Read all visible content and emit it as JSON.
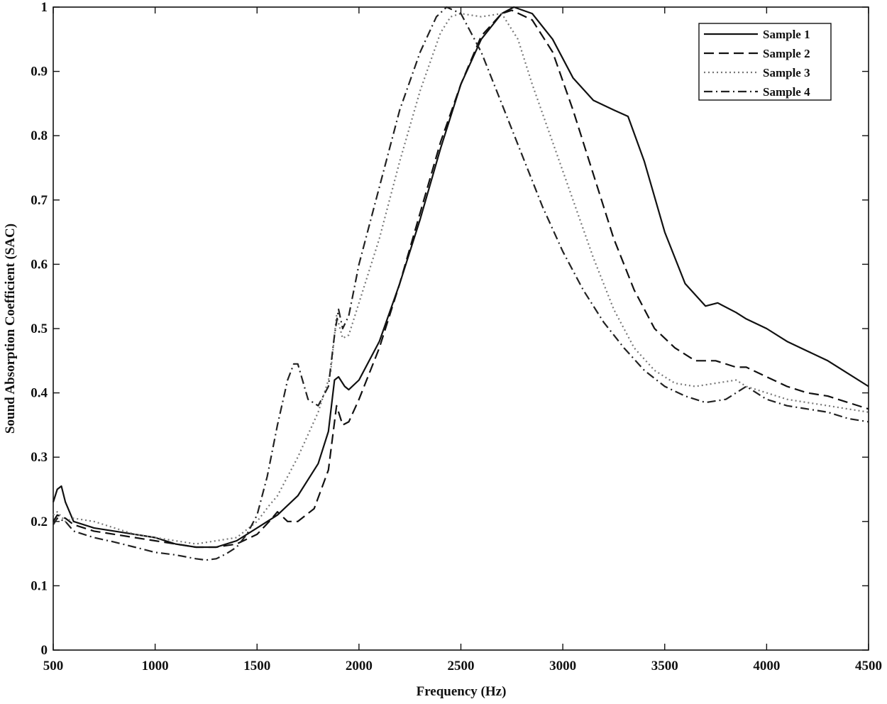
{
  "chart_data": {
    "type": "line",
    "title": "",
    "xlabel": "Frequency (Hz)",
    "ylabel": "Sound Absorption Coefficient (SAC)",
    "xlim": [
      500,
      4500
    ],
    "ylim": [
      0,
      1
    ],
    "grid": false,
    "legend_position": "top-right",
    "x_ticks": [
      500,
      1000,
      1500,
      2000,
      2500,
      3000,
      3500,
      4000,
      4500
    ],
    "y_ticks": [
      0,
      0.1,
      0.2,
      0.3,
      0.4,
      0.5,
      0.6,
      0.7,
      0.8,
      0.9,
      1
    ],
    "y_tick_labels": [
      "0",
      "0.1",
      "0.2",
      "0.3",
      "0.4",
      "0.5",
      "0.6",
      "0.7",
      "0.8",
      "0.9",
      "1"
    ],
    "series": [
      {
        "name": "Sample 1",
        "style": "solid",
        "color": "#111111",
        "points": [
          [
            500,
            0.23
          ],
          [
            520,
            0.25
          ],
          [
            540,
            0.255
          ],
          [
            560,
            0.23
          ],
          [
            600,
            0.2
          ],
          [
            700,
            0.19
          ],
          [
            800,
            0.185
          ],
          [
            900,
            0.18
          ],
          [
            1000,
            0.175
          ],
          [
            1100,
            0.165
          ],
          [
            1200,
            0.16
          ],
          [
            1300,
            0.16
          ],
          [
            1400,
            0.17
          ],
          [
            1500,
            0.19
          ],
          [
            1600,
            0.21
          ],
          [
            1700,
            0.24
          ],
          [
            1800,
            0.29
          ],
          [
            1850,
            0.34
          ],
          [
            1880,
            0.42
          ],
          [
            1900,
            0.425
          ],
          [
            1930,
            0.41
          ],
          [
            1950,
            0.405
          ],
          [
            2000,
            0.42
          ],
          [
            2100,
            0.48
          ],
          [
            2200,
            0.57
          ],
          [
            2300,
            0.67
          ],
          [
            2400,
            0.78
          ],
          [
            2500,
            0.88
          ],
          [
            2600,
            0.95
          ],
          [
            2700,
            0.99
          ],
          [
            2760,
            1.0
          ],
          [
            2850,
            0.99
          ],
          [
            2950,
            0.95
          ],
          [
            3050,
            0.89
          ],
          [
            3150,
            0.855
          ],
          [
            3250,
            0.84
          ],
          [
            3320,
            0.83
          ],
          [
            3400,
            0.76
          ],
          [
            3500,
            0.65
          ],
          [
            3600,
            0.57
          ],
          [
            3700,
            0.535
          ],
          [
            3760,
            0.54
          ],
          [
            3850,
            0.525
          ],
          [
            3900,
            0.515
          ],
          [
            4000,
            0.5
          ],
          [
            4100,
            0.48
          ],
          [
            4200,
            0.465
          ],
          [
            4300,
            0.45
          ],
          [
            4400,
            0.43
          ],
          [
            4500,
            0.41
          ]
        ]
      },
      {
        "name": "Sample 2",
        "style": "dashed",
        "color": "#111111",
        "points": [
          [
            500,
            0.2
          ],
          [
            520,
            0.21
          ],
          [
            560,
            0.205
          ],
          [
            600,
            0.195
          ],
          [
            700,
            0.185
          ],
          [
            800,
            0.18
          ],
          [
            900,
            0.175
          ],
          [
            1000,
            0.17
          ],
          [
            1100,
            0.165
          ],
          [
            1200,
            0.16
          ],
          [
            1300,
            0.16
          ],
          [
            1400,
            0.165
          ],
          [
            1500,
            0.18
          ],
          [
            1560,
            0.2
          ],
          [
            1600,
            0.215
          ],
          [
            1650,
            0.2
          ],
          [
            1700,
            0.2
          ],
          [
            1780,
            0.22
          ],
          [
            1850,
            0.28
          ],
          [
            1890,
            0.38
          ],
          [
            1920,
            0.35
          ],
          [
            1950,
            0.355
          ],
          [
            2000,
            0.39
          ],
          [
            2100,
            0.47
          ],
          [
            2200,
            0.57
          ],
          [
            2300,
            0.68
          ],
          [
            2400,
            0.79
          ],
          [
            2500,
            0.88
          ],
          [
            2600,
            0.955
          ],
          [
            2700,
            0.99
          ],
          [
            2750,
            0.995
          ],
          [
            2850,
            0.98
          ],
          [
            2950,
            0.93
          ],
          [
            3050,
            0.84
          ],
          [
            3150,
            0.74
          ],
          [
            3250,
            0.64
          ],
          [
            3350,
            0.56
          ],
          [
            3450,
            0.5
          ],
          [
            3550,
            0.47
          ],
          [
            3650,
            0.45
          ],
          [
            3750,
            0.45
          ],
          [
            3850,
            0.44
          ],
          [
            3900,
            0.44
          ],
          [
            4000,
            0.425
          ],
          [
            4100,
            0.41
          ],
          [
            4200,
            0.4
          ],
          [
            4300,
            0.395
          ],
          [
            4400,
            0.385
          ],
          [
            4500,
            0.375
          ]
        ]
      },
      {
        "name": "Sample 3",
        "style": "dotted",
        "color": "#777777",
        "points": [
          [
            500,
            0.21
          ],
          [
            520,
            0.215
          ],
          [
            560,
            0.2
          ],
          [
            600,
            0.205
          ],
          [
            700,
            0.2
          ],
          [
            800,
            0.19
          ],
          [
            900,
            0.18
          ],
          [
            1000,
            0.175
          ],
          [
            1100,
            0.17
          ],
          [
            1200,
            0.165
          ],
          [
            1300,
            0.17
          ],
          [
            1400,
            0.175
          ],
          [
            1500,
            0.2
          ],
          [
            1560,
            0.225
          ],
          [
            1600,
            0.24
          ],
          [
            1700,
            0.3
          ],
          [
            1800,
            0.37
          ],
          [
            1860,
            0.43
          ],
          [
            1890,
            0.52
          ],
          [
            1920,
            0.485
          ],
          [
            1950,
            0.49
          ],
          [
            2000,
            0.54
          ],
          [
            2100,
            0.64
          ],
          [
            2200,
            0.76
          ],
          [
            2300,
            0.87
          ],
          [
            2400,
            0.96
          ],
          [
            2450,
            0.985
          ],
          [
            2500,
            0.99
          ],
          [
            2600,
            0.985
          ],
          [
            2700,
            0.99
          ],
          [
            2780,
            0.95
          ],
          [
            2850,
            0.88
          ],
          [
            2950,
            0.79
          ],
          [
            3050,
            0.7
          ],
          [
            3150,
            0.61
          ],
          [
            3250,
            0.53
          ],
          [
            3350,
            0.47
          ],
          [
            3450,
            0.435
          ],
          [
            3550,
            0.415
          ],
          [
            3650,
            0.41
          ],
          [
            3750,
            0.415
          ],
          [
            3850,
            0.42
          ],
          [
            3900,
            0.41
          ],
          [
            4000,
            0.4
          ],
          [
            4100,
            0.39
          ],
          [
            4200,
            0.385
          ],
          [
            4300,
            0.38
          ],
          [
            4400,
            0.375
          ],
          [
            4500,
            0.37
          ]
        ]
      },
      {
        "name": "Sample 4",
        "style": "dashdot",
        "color": "#222222",
        "points": [
          [
            500,
            0.195
          ],
          [
            520,
            0.205
          ],
          [
            560,
            0.2
          ],
          [
            600,
            0.185
          ],
          [
            700,
            0.175
          ],
          [
            800,
            0.168
          ],
          [
            900,
            0.16
          ],
          [
            1000,
            0.152
          ],
          [
            1100,
            0.148
          ],
          [
            1200,
            0.142
          ],
          [
            1250,
            0.14
          ],
          [
            1300,
            0.142
          ],
          [
            1350,
            0.15
          ],
          [
            1400,
            0.16
          ],
          [
            1450,
            0.18
          ],
          [
            1500,
            0.21
          ],
          [
            1550,
            0.27
          ],
          [
            1600,
            0.35
          ],
          [
            1650,
            0.42
          ],
          [
            1680,
            0.445
          ],
          [
            1700,
            0.445
          ],
          [
            1750,
            0.39
          ],
          [
            1800,
            0.38
          ],
          [
            1850,
            0.41
          ],
          [
            1880,
            0.49
          ],
          [
            1900,
            0.53
          ],
          [
            1920,
            0.5
          ],
          [
            1950,
            0.52
          ],
          [
            2000,
            0.6
          ],
          [
            2100,
            0.72
          ],
          [
            2200,
            0.84
          ],
          [
            2300,
            0.93
          ],
          [
            2380,
            0.985
          ],
          [
            2430,
            1.0
          ],
          [
            2500,
            0.99
          ],
          [
            2600,
            0.93
          ],
          [
            2700,
            0.85
          ],
          [
            2800,
            0.77
          ],
          [
            2900,
            0.69
          ],
          [
            3000,
            0.62
          ],
          [
            3100,
            0.56
          ],
          [
            3200,
            0.51
          ],
          [
            3300,
            0.47
          ],
          [
            3400,
            0.435
          ],
          [
            3500,
            0.41
          ],
          [
            3600,
            0.395
          ],
          [
            3700,
            0.385
          ],
          [
            3800,
            0.39
          ],
          [
            3900,
            0.41
          ],
          [
            4000,
            0.39
          ],
          [
            4100,
            0.38
          ],
          [
            4200,
            0.375
          ],
          [
            4300,
            0.37
          ],
          [
            4400,
            0.36
          ],
          [
            4500,
            0.355
          ]
        ]
      }
    ]
  }
}
